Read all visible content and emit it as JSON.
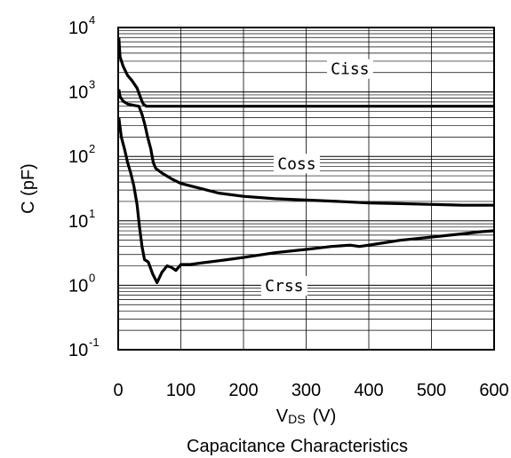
{
  "chart_data": {
    "type": "line",
    "caption": "Capacitance Characteristics",
    "xlabel": {
      "main": "V",
      "sub": "DS",
      "unit": "(V)"
    },
    "ylabel": "C (pF)",
    "xscale": "linear",
    "yscale": "log",
    "xlim": [
      0,
      600
    ],
    "ylim": [
      0.1,
      10000
    ],
    "grid": true,
    "x_ticks": [
      {
        "value": 0,
        "label": "0"
      },
      {
        "value": 100,
        "label": "100"
      },
      {
        "value": 200,
        "label": "200"
      },
      {
        "value": 300,
        "label": "300"
      },
      {
        "value": 400,
        "label": "400"
      },
      {
        "value": 500,
        "label": "500"
      },
      {
        "value": 600,
        "label": "600"
      }
    ],
    "y_ticks": [
      {
        "value": 10000,
        "base": "10",
        "exp": "4"
      },
      {
        "value": 1000,
        "base": "10",
        "exp": "3"
      },
      {
        "value": 100,
        "base": "10",
        "exp": "2"
      },
      {
        "value": 10,
        "base": "10",
        "exp": "1"
      },
      {
        "value": 1,
        "base": "10",
        "exp": "0"
      },
      {
        "value": 0.1,
        "base": "10",
        "exp": "-1"
      }
    ],
    "series": [
      {
        "name": "Ciss",
        "label_at": [
          370,
          2200
        ],
        "points": [
          [
            1,
            7000
          ],
          [
            3,
            3500
          ],
          [
            8,
            2500
          ],
          [
            15,
            1800
          ],
          [
            22,
            1500
          ],
          [
            30,
            1150
          ],
          [
            36,
            800
          ],
          [
            40,
            650
          ],
          [
            45,
            600
          ],
          [
            100,
            600
          ],
          [
            200,
            600
          ],
          [
            300,
            600
          ],
          [
            400,
            600
          ],
          [
            500,
            600
          ],
          [
            600,
            600
          ]
        ]
      },
      {
        "name": "Coss",
        "label_at": [
          285,
          75
        ],
        "points": [
          [
            1,
            1100
          ],
          [
            3,
            850
          ],
          [
            8,
            720
          ],
          [
            15,
            650
          ],
          [
            25,
            620
          ],
          [
            33,
            600
          ],
          [
            38,
            450
          ],
          [
            43,
            300
          ],
          [
            47,
            200
          ],
          [
            52,
            130
          ],
          [
            56,
            80
          ],
          [
            60,
            65
          ],
          [
            70,
            55
          ],
          [
            85,
            45
          ],
          [
            100,
            38
          ],
          [
            130,
            32
          ],
          [
            160,
            27
          ],
          [
            200,
            24
          ],
          [
            250,
            22
          ],
          [
            300,
            21
          ],
          [
            350,
            20
          ],
          [
            400,
            19
          ],
          [
            450,
            18.5
          ],
          [
            500,
            18
          ],
          [
            550,
            17.5
          ],
          [
            600,
            17.5
          ]
        ]
      },
      {
        "name": "Crss",
        "label_at": [
          265,
          0.95
        ],
        "points": [
          [
            1,
            400
          ],
          [
            5,
            200
          ],
          [
            10,
            130
          ],
          [
            15,
            80
          ],
          [
            20,
            55
          ],
          [
            25,
            35
          ],
          [
            30,
            18
          ],
          [
            34,
            8
          ],
          [
            38,
            4
          ],
          [
            42,
            2.5
          ],
          [
            48,
            2.3
          ],
          [
            55,
            1.5
          ],
          [
            62,
            1.1
          ],
          [
            70,
            1.6
          ],
          [
            78,
            2.0
          ],
          [
            85,
            1.9
          ],
          [
            92,
            1.7
          ],
          [
            100,
            2.1
          ],
          [
            115,
            2.1
          ],
          [
            130,
            2.2
          ],
          [
            160,
            2.4
          ],
          [
            200,
            2.7
          ],
          [
            250,
            3.2
          ],
          [
            300,
            3.6
          ],
          [
            340,
            4.0
          ],
          [
            370,
            4.2
          ],
          [
            385,
            4.0
          ],
          [
            400,
            4.2
          ],
          [
            420,
            4.5
          ],
          [
            450,
            5.0
          ],
          [
            500,
            5.6
          ],
          [
            550,
            6.3
          ],
          [
            580,
            6.8
          ],
          [
            600,
            7.0
          ]
        ]
      }
    ]
  }
}
